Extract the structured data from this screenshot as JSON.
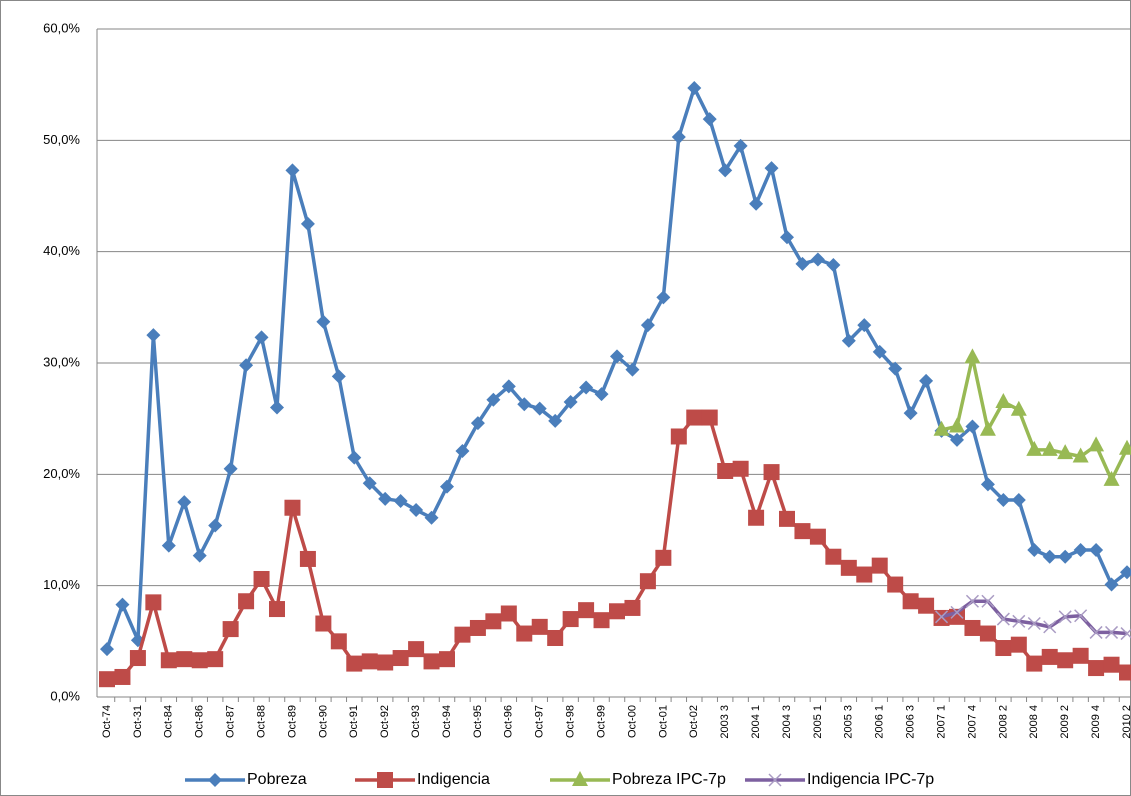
{
  "chart_data": {
    "type": "line",
    "categories": [
      "Oct-74",
      null,
      "Oct-31",
      null,
      "Oct-84",
      null,
      "Oct-86",
      null,
      "Oct-87",
      null,
      "Oct-88",
      null,
      "Oct-89",
      null,
      "Oct-90",
      null,
      "Oct-91",
      null,
      "Oct-92",
      null,
      "Oct-93",
      null,
      "Oct-94",
      null,
      "Oct-95",
      null,
      "Oct-96",
      null,
      "Oct-97",
      null,
      "Oct-98",
      null,
      "Oct-99",
      null,
      "Oct-00",
      null,
      "Oct-01",
      null,
      "Oct-02",
      null,
      "2003 3",
      null,
      "2004 1",
      null,
      "2004 3",
      null,
      "2005 1",
      null,
      "2005 3",
      null,
      "2006 1",
      null,
      "2006 3",
      null,
      "2007 1",
      null,
      "2007 4",
      null,
      "2008 2",
      null,
      "2008 4",
      null,
      "2009 2",
      null,
      "2009 4",
      null,
      "2010 2"
    ],
    "series": [
      {
        "name": "Pobreza",
        "color": "#4a7ebb",
        "marker": "diamond",
        "values": [
          4.3,
          8.3,
          5.1,
          32.5,
          13.6,
          17.5,
          12.7,
          15.4,
          20.5,
          29.8,
          32.3,
          26.0,
          47.3,
          42.5,
          33.7,
          28.8,
          21.5,
          19.2,
          17.8,
          17.6,
          16.8,
          16.1,
          18.9,
          22.1,
          24.6,
          26.7,
          27.9,
          26.3,
          25.9,
          24.8,
          26.5,
          27.8,
          27.2,
          30.6,
          29.4,
          33.4,
          35.9,
          50.3,
          54.7,
          51.9,
          47.3,
          49.5,
          44.3,
          47.5,
          41.3,
          38.9,
          39.3,
          38.8,
          32.0,
          33.4,
          31.0,
          29.5,
          25.5,
          28.4,
          23.9,
          23.1,
          24.3,
          19.1,
          17.7,
          17.7,
          13.2,
          12.6,
          12.6,
          13.2,
          13.2,
          10.1,
          11.2
        ]
      },
      {
        "name": "Indigencia",
        "color": "#be4b48",
        "marker": "square",
        "values": [
          1.6,
          1.8,
          3.5,
          8.5,
          3.3,
          3.4,
          3.3,
          3.4,
          6.1,
          8.6,
          10.6,
          7.9,
          17.0,
          12.4,
          6.6,
          5.0,
          3.0,
          3.2,
          3.1,
          3.5,
          4.3,
          3.2,
          3.4,
          5.6,
          6.2,
          6.8,
          7.5,
          5.7,
          6.3,
          5.3,
          7.0,
          7.8,
          6.9,
          7.7,
          8.0,
          10.4,
          12.5,
          23.4,
          25.1,
          25.1,
          20.3,
          20.5,
          16.1,
          20.2,
          16.0,
          14.9,
          14.4,
          12.6,
          11.6,
          11.0,
          11.8,
          10.1,
          8.6,
          8.2,
          7.1,
          7.2,
          6.2,
          5.7,
          4.4,
          4.7,
          3.0,
          3.6,
          3.3,
          3.7,
          2.6,
          2.9,
          2.2
        ]
      },
      {
        "name": "Pobreza IPC-7p",
        "color": "#98b954",
        "marker": "triangle",
        "values": [
          null,
          null,
          null,
          null,
          null,
          null,
          null,
          null,
          null,
          null,
          null,
          null,
          null,
          null,
          null,
          null,
          null,
          null,
          null,
          null,
          null,
          null,
          null,
          null,
          null,
          null,
          null,
          null,
          null,
          null,
          null,
          null,
          null,
          null,
          null,
          null,
          null,
          null,
          null,
          null,
          null,
          null,
          null,
          null,
          null,
          null,
          null,
          null,
          null,
          null,
          null,
          null,
          null,
          null,
          24.0,
          24.3,
          30.5,
          24.0,
          26.5,
          25.8,
          22.2,
          22.2,
          21.9,
          21.6,
          22.6,
          19.5,
          22.3
        ]
      },
      {
        "name": "Indigencia IPC-7p",
        "color": "#7d60a0",
        "marker": "x",
        "values": [
          null,
          null,
          null,
          null,
          null,
          null,
          null,
          null,
          null,
          null,
          null,
          null,
          null,
          null,
          null,
          null,
          null,
          null,
          null,
          null,
          null,
          null,
          null,
          null,
          null,
          null,
          null,
          null,
          null,
          null,
          null,
          null,
          null,
          null,
          null,
          null,
          null,
          null,
          null,
          null,
          null,
          null,
          null,
          null,
          null,
          null,
          null,
          null,
          null,
          null,
          null,
          null,
          null,
          null,
          7.2,
          7.6,
          8.6,
          8.6,
          7.0,
          6.8,
          6.6,
          6.3,
          7.2,
          7.3,
          5.8,
          5.8,
          5.7
        ]
      }
    ],
    "ylim": [
      0,
      60
    ],
    "yticks": [
      {
        "value": 0,
        "label": "0,0%"
      },
      {
        "value": 10,
        "label": "10,0%"
      },
      {
        "value": 20,
        "label": "20,0%"
      },
      {
        "value": 30,
        "label": "30,0%"
      },
      {
        "value": 40,
        "label": "40,0%"
      },
      {
        "value": 50,
        "label": "50,0%"
      },
      {
        "value": 60,
        "label": "60,0%"
      }
    ],
    "grid": true,
    "legend": "bottom"
  }
}
